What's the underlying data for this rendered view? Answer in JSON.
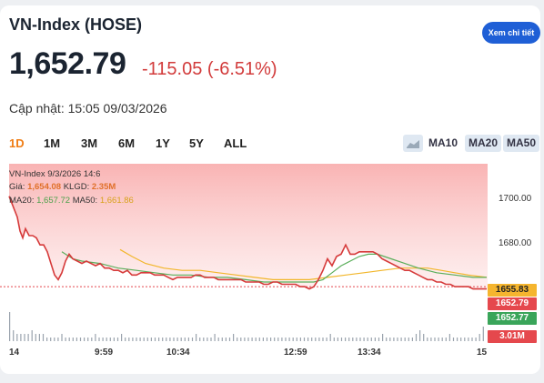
{
  "header": {
    "title": "VN-Index (HOSE)",
    "detail_button": "Xem chi tiết",
    "price": "1,652.79",
    "change": "-115.05 (-6.51%)",
    "updated": "Cập nhật: 15:05 09/03/2026"
  },
  "ranges": [
    {
      "label": "1D",
      "active": true
    },
    {
      "label": "1M",
      "active": false
    },
    {
      "label": "3M",
      "active": false
    },
    {
      "label": "6M",
      "active": false
    },
    {
      "label": "1Y",
      "active": false
    },
    {
      "label": "5Y",
      "active": false
    },
    {
      "label": "ALL",
      "active": false
    }
  ],
  "ma_buttons": [
    {
      "label": "MA10",
      "active": false
    },
    {
      "label": "MA20",
      "active": true
    },
    {
      "label": "MA50",
      "active": true
    }
  ],
  "info": {
    "line1": "VN-Index 9/3/2026 14:6",
    "price_label": "Giá:",
    "price_value": "1,654.08",
    "vol_label": "KLGD:",
    "vol_value": "2.35M",
    "ma20_label": "MA20:",
    "ma20_value": "1,657.72",
    "ma50_label": "MA50:",
    "ma50_value": "1,661.86"
  },
  "axis": {
    "y_ticks": [
      "1700.00",
      "1680.00"
    ],
    "x_ticks": [
      "14",
      "9:59",
      "10:34",
      "12:59",
      "13:34",
      "15"
    ]
  },
  "price_tags": [
    {
      "value": "1655.83",
      "color": "#f5b52e",
      "text_color": "#222"
    },
    {
      "value": "1652.79",
      "color": "#e5484d",
      "text_color": "#fff"
    },
    {
      "value": "1652.77",
      "color": "#3aa55a",
      "text_color": "#fff"
    },
    {
      "value": "3.01M",
      "color": "#e5484d",
      "text_color": "#fff"
    }
  ],
  "chart_data": {
    "type": "area",
    "ylim": [
      1645,
      1707
    ],
    "grid": false,
    "series": [
      {
        "name": "VN-Index",
        "color": "#d63a3a",
        "points": [
          [
            0,
            1693
          ],
          [
            3,
            1690
          ],
          [
            6,
            1687
          ],
          [
            9,
            1684
          ],
          [
            12,
            1678
          ],
          [
            15,
            1675
          ],
          [
            18,
            1679
          ],
          [
            22,
            1676
          ],
          [
            26,
            1676
          ],
          [
            30,
            1675
          ],
          [
            34,
            1672
          ],
          [
            38,
            1672
          ],
          [
            42,
            1669
          ],
          [
            46,
            1664
          ],
          [
            50,
            1659
          ],
          [
            54,
            1657
          ],
          [
            58,
            1660
          ],
          [
            62,
            1665
          ],
          [
            66,
            1668
          ],
          [
            70,
            1666
          ],
          [
            75,
            1665
          ],
          [
            80,
            1664
          ],
          [
            85,
            1665
          ],
          [
            90,
            1664
          ],
          [
            95,
            1663
          ],
          [
            100,
            1664
          ],
          [
            105,
            1662
          ],
          [
            110,
            1662
          ],
          [
            115,
            1661
          ],
          [
            120,
            1661
          ],
          [
            125,
            1660
          ],
          [
            130,
            1661
          ],
          [
            135,
            1659
          ],
          [
            140,
            1659
          ],
          [
            145,
            1660
          ],
          [
            150,
            1660
          ],
          [
            155,
            1660
          ],
          [
            160,
            1659
          ],
          [
            165,
            1659
          ],
          [
            170,
            1659
          ],
          [
            175,
            1658
          ],
          [
            180,
            1657
          ],
          [
            185,
            1658
          ],
          [
            190,
            1658
          ],
          [
            195,
            1658
          ],
          [
            200,
            1658
          ],
          [
            205,
            1659
          ],
          [
            210,
            1659
          ],
          [
            215,
            1658
          ],
          [
            220,
            1658
          ],
          [
            225,
            1658
          ],
          [
            230,
            1657
          ],
          [
            235,
            1657
          ],
          [
            240,
            1657
          ],
          [
            245,
            1657
          ],
          [
            250,
            1657
          ],
          [
            255,
            1657
          ],
          [
            260,
            1656
          ],
          [
            265,
            1656
          ],
          [
            270,
            1656
          ],
          [
            275,
            1656
          ],
          [
            280,
            1655
          ],
          [
            285,
            1655
          ],
          [
            290,
            1656
          ],
          [
            295,
            1656
          ],
          [
            300,
            1655
          ],
          [
            305,
            1655
          ],
          [
            310,
            1655
          ],
          [
            315,
            1655
          ],
          [
            320,
            1654
          ],
          [
            325,
            1654
          ],
          [
            330,
            1653
          ],
          [
            335,
            1654
          ],
          [
            340,
            1657
          ],
          [
            345,
            1661
          ],
          [
            350,
            1666
          ],
          [
            355,
            1663
          ],
          [
            360,
            1667
          ],
          [
            365,
            1668
          ],
          [
            370,
            1672
          ],
          [
            375,
            1668
          ],
          [
            380,
            1668
          ],
          [
            385,
            1669
          ],
          [
            390,
            1669
          ],
          [
            395,
            1669
          ],
          [
            400,
            1669
          ],
          [
            405,
            1668
          ],
          [
            410,
            1666
          ],
          [
            415,
            1665
          ],
          [
            420,
            1664
          ],
          [
            425,
            1663
          ],
          [
            430,
            1662
          ],
          [
            435,
            1661
          ],
          [
            440,
            1661
          ],
          [
            445,
            1660
          ],
          [
            450,
            1659
          ],
          [
            455,
            1658
          ],
          [
            460,
            1657
          ],
          [
            465,
            1657
          ],
          [
            470,
            1656
          ],
          [
            475,
            1656
          ],
          [
            480,
            1655
          ],
          [
            485,
            1655
          ],
          [
            490,
            1654
          ],
          [
            495,
            1654
          ],
          [
            500,
            1654
          ],
          [
            505,
            1654
          ],
          [
            510,
            1653
          ],
          [
            515,
            1653
          ],
          [
            520,
            1653
          ],
          [
            525,
            1653
          ]
        ]
      },
      {
        "name": "MA20",
        "color": "#5aae5a",
        "points": [
          [
            58,
            1669
          ],
          [
            70,
            1666
          ],
          [
            80,
            1665
          ],
          [
            100,
            1664
          ],
          [
            120,
            1662
          ],
          [
            140,
            1661
          ],
          [
            160,
            1660
          ],
          [
            180,
            1659
          ],
          [
            200,
            1659
          ],
          [
            220,
            1658
          ],
          [
            240,
            1658
          ],
          [
            260,
            1657
          ],
          [
            280,
            1656
          ],
          [
            300,
            1656
          ],
          [
            320,
            1656
          ],
          [
            335,
            1656
          ],
          [
            345,
            1657
          ],
          [
            355,
            1660
          ],
          [
            365,
            1663
          ],
          [
            375,
            1665
          ],
          [
            385,
            1667
          ],
          [
            395,
            1668
          ],
          [
            405,
            1668
          ],
          [
            420,
            1666
          ],
          [
            435,
            1664
          ],
          [
            450,
            1662
          ],
          [
            470,
            1660
          ],
          [
            490,
            1659
          ],
          [
            510,
            1658
          ],
          [
            525,
            1658
          ]
        ]
      },
      {
        "name": "MA50",
        "color": "#f2b62a",
        "points": [
          [
            122,
            1670
          ],
          [
            135,
            1667
          ],
          [
            150,
            1664
          ],
          [
            170,
            1662
          ],
          [
            190,
            1661
          ],
          [
            210,
            1661
          ],
          [
            230,
            1660
          ],
          [
            250,
            1659
          ],
          [
            270,
            1658
          ],
          [
            290,
            1657
          ],
          [
            310,
            1657
          ],
          [
            330,
            1657
          ],
          [
            350,
            1658
          ],
          [
            370,
            1659
          ],
          [
            390,
            1660
          ],
          [
            410,
            1661
          ],
          [
            430,
            1662
          ],
          [
            445,
            1662
          ],
          [
            460,
            1662
          ],
          [
            475,
            1661
          ],
          [
            490,
            1660
          ],
          [
            505,
            1659
          ],
          [
            525,
            1658
          ]
        ]
      }
    ],
    "reference_line": 1654,
    "volume": [
      8,
      3,
      2,
      2,
      2,
      2,
      3,
      2,
      2,
      2,
      1,
      1,
      1,
      1,
      2,
      1,
      1,
      1,
      1,
      1,
      1,
      1,
      1,
      2,
      1,
      1,
      1,
      1,
      1,
      1,
      2,
      1,
      1,
      1,
      1,
      1,
      1,
      1,
      1,
      1,
      1,
      1,
      1,
      1,
      1,
      1,
      1,
      1,
      1,
      1,
      2,
      1,
      1,
      1,
      1,
      2,
      1,
      1,
      1,
      1,
      2,
      1,
      1,
      1,
      1,
      1,
      1,
      1,
      1,
      1,
      1,
      1,
      1,
      1,
      1,
      1,
      1,
      1,
      1,
      1,
      1,
      1,
      1,
      1,
      1,
      1,
      2,
      1,
      1,
      1,
      1,
      1,
      1,
      1,
      1,
      1,
      1,
      1,
      1,
      1,
      2,
      1,
      1,
      1,
      1,
      1,
      1,
      1,
      1,
      2,
      3,
      2,
      1,
      1,
      1,
      1,
      1,
      1,
      2,
      1,
      1,
      1,
      1,
      1,
      1,
      1,
      2,
      4
    ]
  }
}
